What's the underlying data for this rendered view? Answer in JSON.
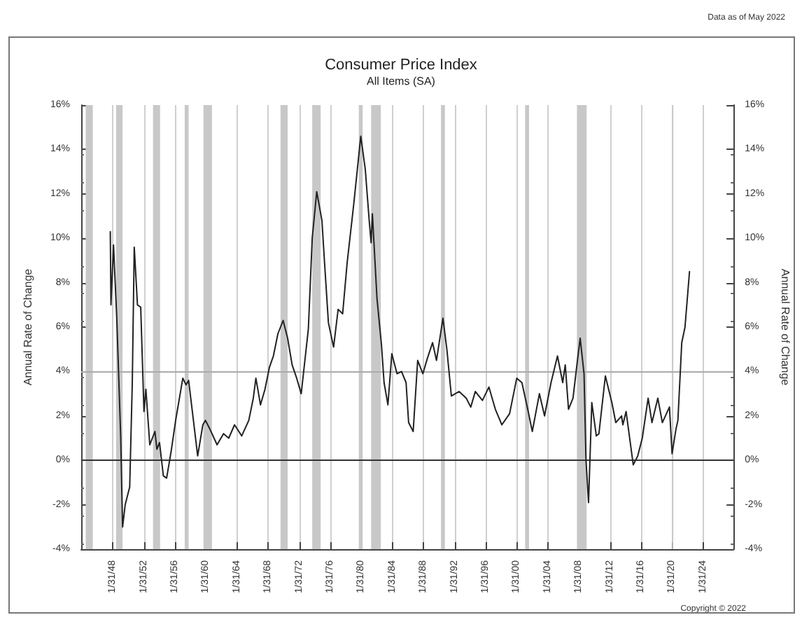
{
  "chart_data": {
    "type": "line",
    "title": "Consumer Price Index",
    "subtitle": "All Items (SA)",
    "ylabel": "Annual Rate of Change",
    "y2label": "Annual Rate of Change",
    "annotations": [
      "Data as of May 2022",
      "Copyright © 2022"
    ],
    "series": [
      {
        "color": "#222222",
        "x": [
          "1947-10",
          "1947-11",
          "1948-03",
          "1948-08",
          "1949-02",
          "1949-05",
          "1949-09",
          "1950-04",
          "1950-08",
          "1950-11",
          "1951-04",
          "1951-09",
          "1952-02",
          "1952-05",
          "1952-11",
          "1953-07",
          "1953-10",
          "1954-02",
          "1954-08",
          "1955-01",
          "1955-08",
          "1956-03",
          "1957-02",
          "1957-07",
          "1957-11",
          "1959-01",
          "1959-09",
          "1960-01",
          "1960-08",
          "1961-07",
          "1962-05",
          "1963-01",
          "1963-10",
          "1964-09",
          "1965-08",
          "1966-03",
          "1966-07",
          "1967-02",
          "1967-09",
          "1968-04",
          "1968-10",
          "1969-05",
          "1970-01",
          "1970-08",
          "1971-03",
          "1971-10",
          "1972-05",
          "1973-04",
          "1973-10",
          "1974-05",
          "1975-01",
          "1975-04",
          "1975-11",
          "1976-07",
          "1977-02",
          "1977-09",
          "1978-04",
          "1979-02",
          "1980-01",
          "1980-08",
          "1981-02",
          "1981-05",
          "1981-07",
          "1982-02",
          "1982-09",
          "1983-01",
          "1983-07",
          "1984-01",
          "1984-09",
          "1985-04",
          "1985-11",
          "1986-03",
          "1986-10",
          "1987-05",
          "1988-01",
          "1988-08",
          "1989-04",
          "1989-10",
          "1990-08",
          "1991-02",
          "1991-09",
          "1992-09",
          "1993-08",
          "1994-03",
          "1994-10",
          "1995-09",
          "1996-07",
          "1997-05",
          "1998-03",
          "1999-03",
          "2000-02",
          "2000-10",
          "2001-07",
          "2002-02",
          "2003-01",
          "2003-09",
          "2004-07",
          "2005-05",
          "2006-01",
          "2006-05",
          "2006-10",
          "2007-05",
          "2007-11",
          "2008-04",
          "2008-10",
          "2009-01",
          "2009-05",
          "2009-10",
          "2010-05",
          "2010-09",
          "2011-07",
          "2012-05",
          "2012-11",
          "2013-08",
          "2013-10",
          "2014-03",
          "2015-02",
          "2015-09",
          "2016-04",
          "2017-01",
          "2017-07",
          "2018-04",
          "2018-11",
          "2019-10",
          "2020-02",
          "2020-08",
          "2020-11",
          "2021-05",
          "2021-10",
          "2022-05"
        ],
        "values": [
          10.3,
          7.0,
          9.7,
          6.4,
          1.1,
          -3.0,
          -2.0,
          -1.2,
          3.5,
          9.6,
          7.0,
          6.9,
          2.2,
          3.2,
          0.7,
          1.3,
          0.5,
          0.8,
          -0.7,
          -0.8,
          0.4,
          1.8,
          3.7,
          3.4,
          3.6,
          0.2,
          1.6,
          1.8,
          1.4,
          0.7,
          1.2,
          1.0,
          1.6,
          1.1,
          1.8,
          2.8,
          3.7,
          2.5,
          3.2,
          4.2,
          4.7,
          5.7,
          6.3,
          5.5,
          4.3,
          3.7,
          3.0,
          5.9,
          10.0,
          12.1,
          10.8,
          9.4,
          6.2,
          5.1,
          6.8,
          6.6,
          8.9,
          11.5,
          14.6,
          13.1,
          10.8,
          9.8,
          11.1,
          7.3,
          5.2,
          3.5,
          2.5,
          4.8,
          3.9,
          4.0,
          3.5,
          1.7,
          1.3,
          4.5,
          3.9,
          4.6,
          5.3,
          4.5,
          6.4,
          5.0,
          2.9,
          3.1,
          2.8,
          2.4,
          3.1,
          2.7,
          3.3,
          2.3,
          1.6,
          2.1,
          3.7,
          3.5,
          2.3,
          1.3,
          3.0,
          2.0,
          3.5,
          4.7,
          3.5,
          4.3,
          2.3,
          2.8,
          4.3,
          5.5,
          3.9,
          0.0,
          -1.9,
          2.6,
          1.1,
          1.2,
          3.8,
          2.6,
          1.7,
          2.0,
          1.6,
          2.2,
          -0.2,
          0.2,
          1.0,
          2.8,
          1.7,
          2.8,
          1.7,
          2.4,
          0.3,
          1.4,
          1.8,
          5.3,
          6.0,
          8.5
        ]
      }
    ],
    "xlim": [
      "1944-01",
      "2028-01"
    ],
    "xticks": [
      {
        "value": "1948-01-31",
        "label": "1/31/48"
      },
      {
        "value": "1952-01-31",
        "label": "1/31/52"
      },
      {
        "value": "1956-01-31",
        "label": "1/31/56"
      },
      {
        "value": "1960-01-31",
        "label": "1/31/60"
      },
      {
        "value": "1964-01-31",
        "label": "1/31/64"
      },
      {
        "value": "1968-01-31",
        "label": "1/31/68"
      },
      {
        "value": "1972-01-31",
        "label": "1/31/72"
      },
      {
        "value": "1976-01-31",
        "label": "1/31/76"
      },
      {
        "value": "1980-01-31",
        "label": "1/31/80"
      },
      {
        "value": "1984-01-31",
        "label": "1/31/84"
      },
      {
        "value": "1988-01-31",
        "label": "1/31/88"
      },
      {
        "value": "1992-01-31",
        "label": "1/31/92"
      },
      {
        "value": "1996-01-31",
        "label": "1/31/96"
      },
      {
        "value": "2000-01-31",
        "label": "1/31/00"
      },
      {
        "value": "2004-01-31",
        "label": "1/31/04"
      },
      {
        "value": "2008-01-31",
        "label": "1/31/08"
      },
      {
        "value": "2012-01-31",
        "label": "1/31/12"
      },
      {
        "value": "2016-01-31",
        "label": "1/31/16"
      },
      {
        "value": "2020-01-31",
        "label": "1/31/20"
      },
      {
        "value": "2024-01-31",
        "label": "1/31/24"
      }
    ],
    "ylim": [
      -4,
      16
    ],
    "yticks": [
      {
        "value": -4,
        "label": "-4%"
      },
      {
        "value": -2,
        "label": "-2%"
      },
      {
        "value": 0,
        "label": "0%"
      },
      {
        "value": 2,
        "label": "2%"
      },
      {
        "value": 4,
        "label": "4%"
      },
      {
        "value": 6,
        "label": "6%"
      },
      {
        "value": 8,
        "label": "8%"
      },
      {
        "value": 10,
        "label": "10%"
      },
      {
        "value": 12,
        "label": "12%"
      },
      {
        "value": 14,
        "label": "14%"
      },
      {
        "value": 16,
        "label": "16%"
      }
    ],
    "y2lim": [
      -4,
      16
    ],
    "y2ticks": [
      {
        "value": -4,
        "label": "-4%"
      },
      {
        "value": -2,
        "label": "-2%"
      },
      {
        "value": 0,
        "label": "0%"
      },
      {
        "value": 2,
        "label": "2%"
      },
      {
        "value": 4,
        "label": "4%"
      },
      {
        "value": 6,
        "label": "6%"
      },
      {
        "value": 8,
        "label": "8%"
      },
      {
        "value": 10,
        "label": "10%"
      },
      {
        "value": 12,
        "label": "12%"
      },
      {
        "value": 14,
        "label": "14%"
      },
      {
        "value": 16,
        "label": "16%"
      }
    ],
    "ref_lines": [
      {
        "axis": "y",
        "value": 0,
        "color": "#333333"
      },
      {
        "axis": "y",
        "value": 4,
        "color": "#aaaaaa"
      }
    ],
    "bands": [
      {
        "axis": "x",
        "from": "1944-08",
        "to": "1945-07",
        "color": "#c8c8c8"
      },
      {
        "axis": "x",
        "from": "1948-07",
        "to": "1949-05",
        "color": "#c8c8c8"
      },
      {
        "axis": "x",
        "from": "1953-04",
        "to": "1954-03",
        "color": "#c8c8c8"
      },
      {
        "axis": "x",
        "from": "1957-05",
        "to": "1957-11",
        "color": "#c8c8c8"
      },
      {
        "axis": "x",
        "from": "1959-10",
        "to": "1960-11",
        "color": "#c8c8c8"
      },
      {
        "axis": "x",
        "from": "1969-09",
        "to": "1970-08",
        "color": "#c8c8c8"
      },
      {
        "axis": "x",
        "from": "1973-10",
        "to": "1974-11",
        "color": "#c8c8c8"
      },
      {
        "axis": "x",
        "from": "1979-10",
        "to": "1980-04",
        "color": "#c8c8c8"
      },
      {
        "axis": "x",
        "from": "1981-05",
        "to": "1982-08",
        "color": "#c8c8c8"
      },
      {
        "axis": "x",
        "from": "1990-05",
        "to": "1990-11",
        "color": "#c8c8c8"
      },
      {
        "axis": "x",
        "from": "2001-03",
        "to": "2001-09",
        "color": "#c8c8c8"
      },
      {
        "axis": "x",
        "from": "2007-11",
        "to": "2009-02",
        "color": "#c8c8c8"
      },
      {
        "axis": "x",
        "from": "2020-02",
        "to": "2020-04",
        "color": "#c8c8c8"
      }
    ],
    "grid": "x",
    "marker": "none",
    "line_style": "solid"
  }
}
